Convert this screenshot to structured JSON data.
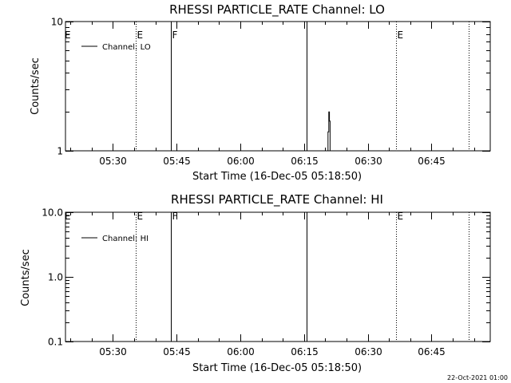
{
  "footer": {
    "timestamp": "22-Oct-2021 01:00"
  },
  "chart_data": [
    {
      "type": "line",
      "title": "RHESSI PARTICLE_RATE Channel: LO",
      "xlabel": "Start Time (16-Dec-05 05:18:50)",
      "ylabel": "Counts/sec",
      "yscale": "log",
      "ylim": [
        1,
        10
      ],
      "ytick_values": [
        1,
        10
      ],
      "ytick_labels": [
        "1",
        "10"
      ],
      "xlim_minutes": [
        0,
        100
      ],
      "xtick_minutes": [
        11.17,
        26.17,
        41.17,
        56.17,
        71.17,
        86.17
      ],
      "xtick_labels": [
        "05:30",
        "05:45",
        "06:00",
        "06:15",
        "06:30",
        "06:45"
      ],
      "legend": {
        "position": "top-left",
        "entries": [
          "Channel: LO"
        ]
      },
      "series": [
        {
          "name": "Channel: LO",
          "x_minutes": [
            61.8,
            61.8,
            62.0,
            62.0,
            62.15,
            62.15,
            62.3,
            62.3
          ],
          "values": [
            1,
            1.4,
            1.4,
            2.0,
            2.0,
            1.7,
            1.7,
            1
          ]
        }
      ],
      "vlines": [
        {
          "x_minutes": 16.5,
          "style": "dotted",
          "label": "E"
        },
        {
          "x_minutes": 24.85,
          "style": "solid",
          "label": "F"
        },
        {
          "x_minutes": 56.85,
          "style": "solid",
          "label": ""
        },
        {
          "x_minutes": 77.8,
          "style": "dotted",
          "label": "E"
        },
        {
          "x_minutes": 95.0,
          "style": "dotted",
          "label": ""
        }
      ],
      "edge_label": "E"
    },
    {
      "type": "line",
      "title": "RHESSI PARTICLE_RATE Channel: HI",
      "xlabel": "Start Time (16-Dec-05 05:18:50)",
      "ylabel": "Counts/sec",
      "yscale": "log",
      "ylim": [
        0.1,
        10
      ],
      "ytick_values": [
        0.1,
        1,
        10
      ],
      "ytick_labels": [
        "0.1",
        "1.0",
        "10.0"
      ],
      "xlim_minutes": [
        0,
        100
      ],
      "xtick_minutes": [
        11.17,
        26.17,
        41.17,
        56.17,
        71.17,
        86.17
      ],
      "xtick_labels": [
        "05:30",
        "05:45",
        "06:00",
        "06:15",
        "06:30",
        "06:45"
      ],
      "legend": {
        "position": "top-left",
        "entries": [
          "Channel: HI"
        ]
      },
      "series": [
        {
          "name": "Channel: HI",
          "x_minutes": [],
          "values": []
        }
      ],
      "vlines": [
        {
          "x_minutes": 16.5,
          "style": "dotted",
          "label": "E"
        },
        {
          "x_minutes": 24.85,
          "style": "solid",
          "label": "F"
        },
        {
          "x_minutes": 56.85,
          "style": "solid",
          "label": ""
        },
        {
          "x_minutes": 77.8,
          "style": "dotted",
          "label": "E"
        },
        {
          "x_minutes": 95.0,
          "style": "dotted",
          "label": ""
        }
      ],
      "edge_label": "E"
    }
  ]
}
